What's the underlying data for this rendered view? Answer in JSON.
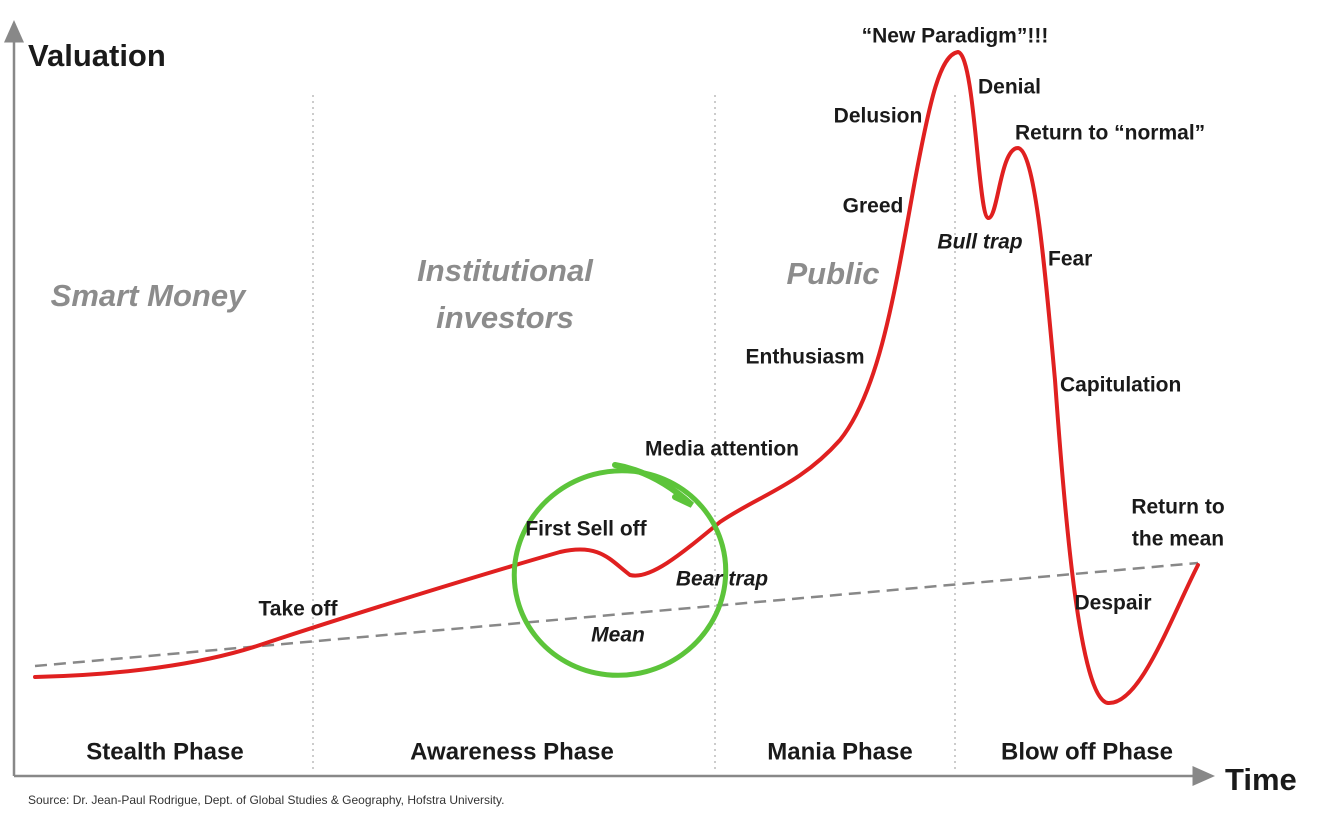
{
  "axes": {
    "y_label": "Valuation",
    "x_label": "Time"
  },
  "groups": {
    "smart_money": "Smart Money",
    "institutional": [
      "Institutional",
      "investors"
    ],
    "public": "Public"
  },
  "phases": [
    "Stealth Phase",
    "Awareness Phase",
    "Mania Phase",
    "Blow off Phase"
  ],
  "annotations": {
    "new_paradigm": "“New Paradigm”!!!",
    "denial": "Denial",
    "delusion": "Delusion",
    "return_normal": "Return to “normal”",
    "greed": "Greed",
    "bull_trap": "Bull trap",
    "fear": "Fear",
    "enthusiasm": "Enthusiasm",
    "capitulation": "Capitulation",
    "media_attention": "Media attention",
    "first_sell_off": "First Sell off",
    "return_mean": [
      "Return to",
      "the mean"
    ],
    "bear_trap": "Bear trap",
    "take_off": "Take off",
    "despair": "Despair",
    "mean": "Mean"
  },
  "source": "Source: Dr. Jean-Paul Rodrigue, Dept. of Global Studies & Geography, Hofstra University."
}
